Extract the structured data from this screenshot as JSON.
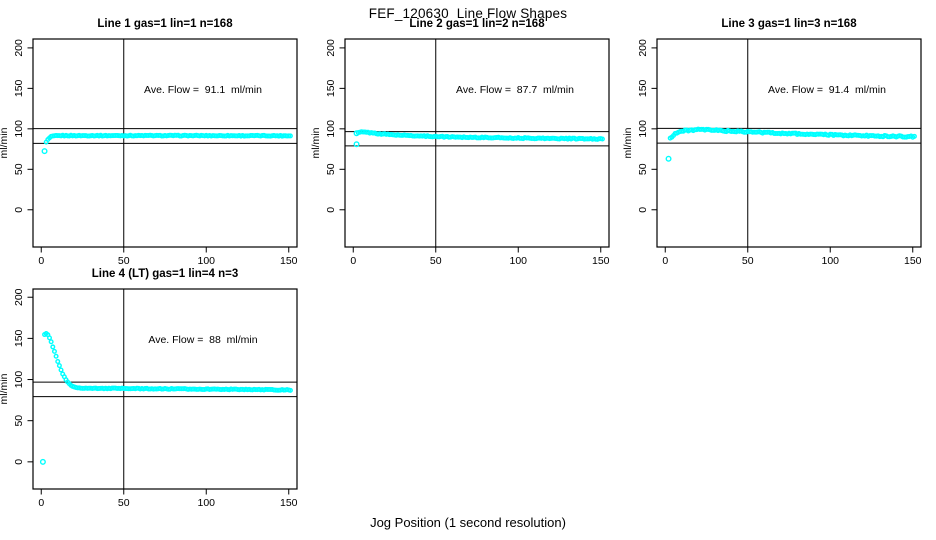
{
  "figure": {
    "title": "FEF_120630  Line Flow Shapes",
    "xlabel": "Jog Position (1 second resolution)",
    "background_color": "#FFFFFF",
    "point_color": "#00FFFF",
    "line_color": "#000000"
  },
  "chart_data": [
    {
      "type": "scatter",
      "title": "Line 1 gas=1 lin=1 n=168",
      "annotation": "Ave. Flow =  91.1  ml/min",
      "ave_flow_ml_min": 91.1,
      "ylabel": "ml/min",
      "x_ticks": [
        0,
        50,
        100,
        150
      ],
      "y_ticks": [
        0,
        50,
        100,
        150,
        200
      ],
      "xlim": [
        -5,
        155
      ],
      "ylim": [
        -46,
        211
      ],
      "ref_lines_h": [
        100.2,
        82.0
      ],
      "ref_line_v": 50,
      "marker": "open-circle",
      "x_range": [
        3,
        151
      ],
      "noise": 0.5,
      "series_keypoints": [
        [
          3,
          83.5
        ],
        [
          4,
          86.5
        ],
        [
          5,
          88.8
        ],
        [
          6,
          90.2
        ],
        [
          8,
          91.2
        ],
        [
          12,
          91.6
        ],
        [
          80,
          91.6
        ],
        [
          151,
          91.4
        ]
      ],
      "outliers": [
        [
          2,
          72.5
        ]
      ]
    },
    {
      "type": "scatter",
      "title": "Line 2 gas=1 lin=2 n=168",
      "annotation": "Ave. Flow =  87.7  ml/min",
      "ave_flow_ml_min": 87.7,
      "ylabel": "ml/min",
      "x_ticks": [
        0,
        50,
        100,
        150
      ],
      "y_ticks": [
        0,
        50,
        100,
        150,
        200
      ],
      "xlim": [
        -5,
        155
      ],
      "ylim": [
        -46,
        211
      ],
      "ref_lines_h": [
        96.5,
        78.9
      ],
      "ref_line_v": 50,
      "marker": "open-circle",
      "x_range": [
        3,
        151
      ],
      "noise": 0.6,
      "series_keypoints": [
        [
          3,
          95
        ],
        [
          4,
          95.8
        ],
        [
          6,
          96
        ],
        [
          10,
          95.2
        ],
        [
          15,
          94
        ],
        [
          20,
          93.2
        ],
        [
          30,
          92
        ],
        [
          40,
          91.2
        ],
        [
          50,
          90.5
        ],
        [
          60,
          90
        ],
        [
          80,
          89.2
        ],
        [
          100,
          88.6
        ],
        [
          120,
          88.1
        ],
        [
          151,
          87.4
        ]
      ],
      "outliers": [
        [
          2,
          94.5
        ],
        [
          2,
          81
        ]
      ]
    },
    {
      "type": "scatter",
      "title": "Line 3 gas=1 lin=3 n=168",
      "annotation": "Ave. Flow =  91.4  ml/min",
      "ave_flow_ml_min": 91.4,
      "ylabel": "ml/min",
      "x_ticks": [
        0,
        50,
        100,
        150
      ],
      "y_ticks": [
        0,
        50,
        100,
        150,
        200
      ],
      "xlim": [
        -5,
        155
      ],
      "ylim": [
        -46,
        211
      ],
      "ref_lines_h": [
        100.5,
        82.3
      ],
      "ref_line_v": 50,
      "marker": "open-circle",
      "x_range": [
        3,
        151
      ],
      "noise": 0.9,
      "series_keypoints": [
        [
          3,
          88.5
        ],
        [
          4,
          90.5
        ],
        [
          5,
          92.5
        ],
        [
          6,
          94
        ],
        [
          8,
          96
        ],
        [
          10,
          97
        ],
        [
          14,
          98.2
        ],
        [
          20,
          98.8
        ],
        [
          28,
          98.5
        ],
        [
          35,
          97.6
        ],
        [
          45,
          96.6
        ],
        [
          55,
          95.8
        ],
        [
          65,
          95
        ],
        [
          80,
          93.8
        ],
        [
          95,
          92.8
        ],
        [
          110,
          92
        ],
        [
          125,
          91.3
        ],
        [
          140,
          90.7
        ],
        [
          151,
          90.3
        ]
      ],
      "outliers": [
        [
          2,
          63
        ]
      ]
    },
    {
      "type": "scatter",
      "title": "Line 4 (LT) gas=1 lin=4 n=3",
      "annotation": "Ave. Flow =  88  ml/min",
      "ave_flow_ml_min": 88,
      "ylabel": "ml/min",
      "x_ticks": [
        0,
        50,
        100,
        150
      ],
      "y_ticks": [
        0,
        50,
        100,
        150,
        200
      ],
      "xlim": [
        -5,
        155
      ],
      "ylim": [
        -33,
        210
      ],
      "ref_lines_h": [
        96.8,
        79.2
      ],
      "ref_line_v": 50,
      "marker": "open-circle",
      "x_range": [
        2,
        151
      ],
      "noise": 0.45,
      "series_keypoints": [
        [
          2,
          155
        ],
        [
          3,
          156
        ],
        [
          4,
          154.5
        ],
        [
          5,
          150.5
        ],
        [
          6,
          145.5
        ],
        [
          7,
          140
        ],
        [
          8,
          134
        ],
        [
          9,
          128
        ],
        [
          10,
          122
        ],
        [
          11,
          116.5
        ],
        [
          12,
          111.5
        ],
        [
          13,
          107
        ],
        [
          14,
          103
        ],
        [
          15,
          99.5
        ],
        [
          16,
          96.8
        ],
        [
          17,
          94.6
        ],
        [
          18,
          93
        ],
        [
          19,
          91.8
        ],
        [
          20,
          91
        ],
        [
          22,
          90.2
        ],
        [
          25,
          89.6
        ],
        [
          30,
          89.2
        ],
        [
          40,
          89.2
        ],
        [
          50,
          89.1
        ],
        [
          60,
          88.9
        ],
        [
          80,
          88.6
        ],
        [
          100,
          88.3
        ],
        [
          120,
          88
        ],
        [
          151,
          87.3
        ]
      ],
      "outliers": [
        [
          1,
          0
        ]
      ]
    }
  ]
}
